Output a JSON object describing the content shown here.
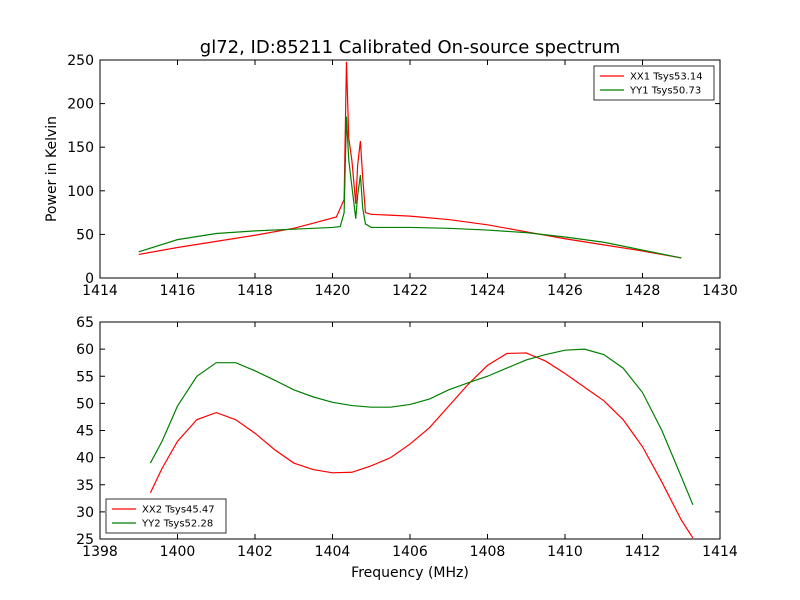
{
  "colors": {
    "xx": "#ff0000",
    "yy": "#008000",
    "axes": "#000000",
    "background": "#ffffff"
  },
  "chart_data": [
    {
      "type": "line",
      "title": "gl72, ID:85211 Calibrated On-source spectrum",
      "xlabel": "",
      "ylabel": "Power in Kelvin",
      "xlim": [
        1414,
        1430
      ],
      "ylim": [
        0,
        250
      ],
      "xticks": [
        "1414",
        "1416",
        "1418",
        "1420",
        "1422",
        "1424",
        "1426",
        "1428",
        "1430"
      ],
      "yticks": [
        "0",
        "50",
        "100",
        "150",
        "200",
        "250"
      ],
      "legend_position": "upper right",
      "grid": false,
      "series": [
        {
          "name": "XX1 Tsys53.14",
          "color": "#ff0000",
          "points": [
            [
              1415.0,
              27
            ],
            [
              1416.0,
              35
            ],
            [
              1417.0,
              42
            ],
            [
              1418.0,
              49
            ],
            [
              1419.0,
              57
            ],
            [
              1419.6,
              64
            ],
            [
              1420.1,
              70
            ],
            [
              1420.3,
              90
            ],
            [
              1420.36,
              248
            ],
            [
              1420.42,
              160
            ],
            [
              1420.5,
              135
            ],
            [
              1420.6,
              85
            ],
            [
              1420.65,
              130
            ],
            [
              1420.72,
              157
            ],
            [
              1420.78,
              115
            ],
            [
              1420.85,
              75
            ],
            [
              1421.0,
              73
            ],
            [
              1422.0,
              71
            ],
            [
              1423.0,
              67
            ],
            [
              1424.0,
              61
            ],
            [
              1425.0,
              53
            ],
            [
              1426.0,
              45
            ],
            [
              1427.0,
              38
            ],
            [
              1428.0,
              31
            ],
            [
              1429.0,
              23
            ]
          ]
        },
        {
          "name": "YY1 Tsys50.73",
          "color": "#008000",
          "points": [
            [
              1415.0,
              30
            ],
            [
              1416.0,
              44
            ],
            [
              1417.0,
              51
            ],
            [
              1418.0,
              54
            ],
            [
              1419.0,
              56
            ],
            [
              1420.0,
              58
            ],
            [
              1420.2,
              59
            ],
            [
              1420.3,
              75
            ],
            [
              1420.36,
              185
            ],
            [
              1420.42,
              135
            ],
            [
              1420.5,
              105
            ],
            [
              1420.6,
              68
            ],
            [
              1420.65,
              95
            ],
            [
              1420.72,
              118
            ],
            [
              1420.78,
              80
            ],
            [
              1420.85,
              62
            ],
            [
              1421.0,
              58
            ],
            [
              1422.0,
              58
            ],
            [
              1423.0,
              57
            ],
            [
              1424.0,
              55
            ],
            [
              1425.0,
              52
            ],
            [
              1426.0,
              47
            ],
            [
              1427.0,
              41
            ],
            [
              1428.0,
              32
            ],
            [
              1429.0,
              23
            ]
          ]
        }
      ]
    },
    {
      "type": "line",
      "title": "",
      "xlabel": "Frequency (MHz)",
      "ylabel": "",
      "xlim": [
        1398,
        1414
      ],
      "ylim": [
        25,
        65
      ],
      "xticks": [
        "1398",
        "1400",
        "1402",
        "1404",
        "1406",
        "1408",
        "1410",
        "1412",
        "1414"
      ],
      "yticks": [
        "25",
        "30",
        "35",
        "40",
        "45",
        "50",
        "55",
        "60",
        "65"
      ],
      "legend_position": "lower left",
      "grid": false,
      "series": [
        {
          "name": "XX2 Tsys45.47",
          "color": "#ff0000",
          "points": [
            [
              1399.3,
              33.5
            ],
            [
              1399.6,
              38
            ],
            [
              1400.0,
              43
            ],
            [
              1400.5,
              47
            ],
            [
              1401.0,
              48.3
            ],
            [
              1401.5,
              47
            ],
            [
              1402.0,
              44.5
            ],
            [
              1402.5,
              41.5
            ],
            [
              1403.0,
              39
            ],
            [
              1403.5,
              37.8
            ],
            [
              1404.0,
              37.2
            ],
            [
              1404.5,
              37.3
            ],
            [
              1405.0,
              38.5
            ],
            [
              1405.5,
              40
            ],
            [
              1406.0,
              42.5
            ],
            [
              1406.5,
              45.5
            ],
            [
              1407.0,
              49.5
            ],
            [
              1407.5,
              53.5
            ],
            [
              1408.0,
              57
            ],
            [
              1408.5,
              59.2
            ],
            [
              1409.0,
              59.3
            ],
            [
              1409.5,
              57.8
            ],
            [
              1410.0,
              55.5
            ],
            [
              1410.5,
              53
            ],
            [
              1411.0,
              50.5
            ],
            [
              1411.5,
              47
            ],
            [
              1412.0,
              42
            ],
            [
              1412.5,
              35.5
            ],
            [
              1413.0,
              28.5
            ],
            [
              1413.3,
              25.2
            ]
          ]
        },
        {
          "name": "YY2 Tsys52.28",
          "color": "#008000",
          "points": [
            [
              1399.3,
              39
            ],
            [
              1399.6,
              43
            ],
            [
              1400.0,
              49.5
            ],
            [
              1400.5,
              55
            ],
            [
              1401.0,
              57.5
            ],
            [
              1401.5,
              57.5
            ],
            [
              1402.0,
              56
            ],
            [
              1402.5,
              54.3
            ],
            [
              1403.0,
              52.5
            ],
            [
              1403.5,
              51.2
            ],
            [
              1404.0,
              50.2
            ],
            [
              1404.5,
              49.6
            ],
            [
              1405.0,
              49.3
            ],
            [
              1405.5,
              49.3
            ],
            [
              1406.0,
              49.8
            ],
            [
              1406.5,
              50.8
            ],
            [
              1407.0,
              52.5
            ],
            [
              1407.5,
              53.8
            ],
            [
              1408.0,
              55
            ],
            [
              1408.5,
              56.5
            ],
            [
              1409.0,
              58
            ],
            [
              1409.5,
              59
            ],
            [
              1410.0,
              59.8
            ],
            [
              1410.5,
              60
            ],
            [
              1411.0,
              59
            ],
            [
              1411.5,
              56.5
            ],
            [
              1412.0,
              52
            ],
            [
              1412.5,
              45
            ],
            [
              1413.0,
              36.5
            ],
            [
              1413.3,
              31.3
            ]
          ]
        }
      ]
    }
  ]
}
